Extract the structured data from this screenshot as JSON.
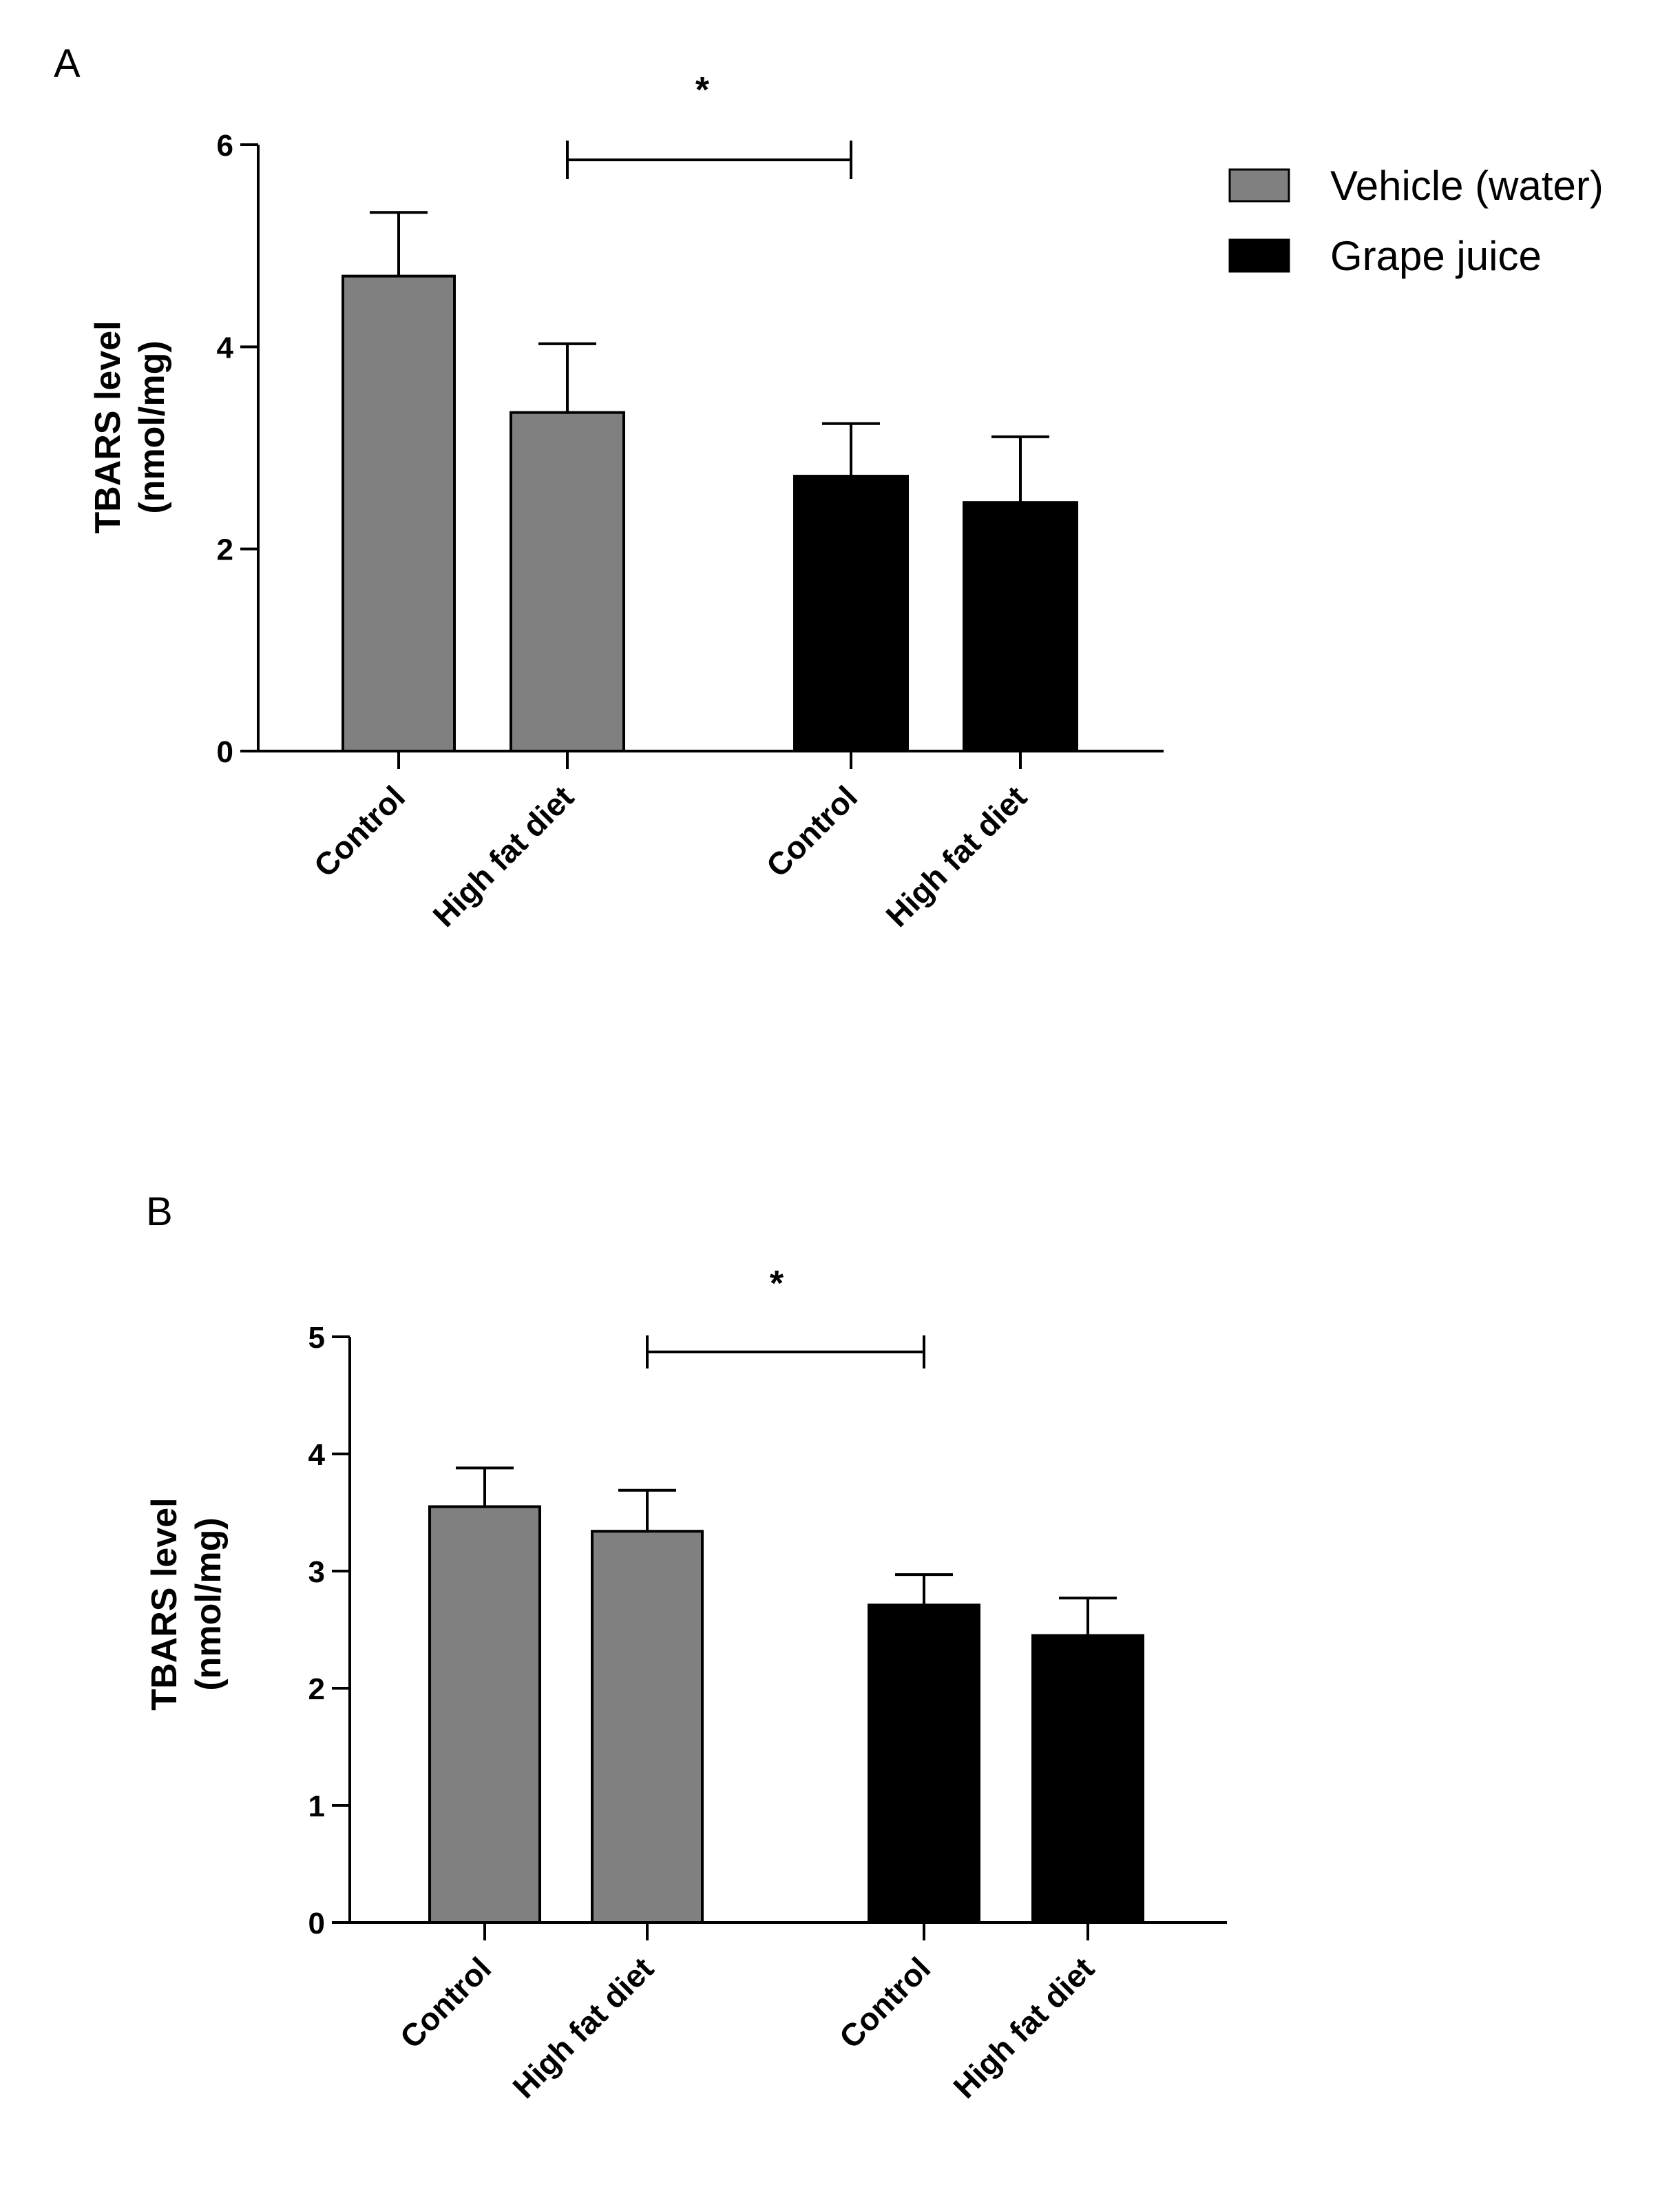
{
  "legend": [
    {
      "label": "Vehicle (water)",
      "color": "#808080"
    },
    {
      "label": "Grape juice",
      "color": "#000000"
    }
  ],
  "chart_data": [
    {
      "type": "bar",
      "panel_label": "A",
      "categories": [
        "Control",
        "High fat diet",
        "Control",
        "High fat diet"
      ],
      "groups": [
        "Vehicle (water)",
        "Vehicle (water)",
        "Grape juice",
        "Grape juice"
      ],
      "values": [
        4.7,
        3.35,
        2.72,
        2.46
      ],
      "errors": [
        0.63,
        0.68,
        0.52,
        0.65
      ],
      "ylabel_line1": "TBARS level",
      "ylabel_line2": "(nmol/mg)",
      "ylim": [
        0,
        6
      ],
      "yticks": [
        0,
        2,
        4,
        6
      ],
      "significance": {
        "from_bar": 1,
        "to_bar": 2,
        "label": "*"
      }
    },
    {
      "type": "bar",
      "panel_label": "B",
      "categories": [
        "Control",
        "High fat diet",
        "Control",
        "High fat diet"
      ],
      "groups": [
        "Vehicle (water)",
        "Vehicle (water)",
        "Grape juice",
        "Grape juice"
      ],
      "values": [
        3.55,
        3.34,
        2.71,
        2.45
      ],
      "errors": [
        0.33,
        0.35,
        0.26,
        0.32
      ],
      "ylabel_line1": "TBARS level",
      "ylabel_line2": "(nmol/mg)",
      "ylim": [
        0,
        5
      ],
      "yticks": [
        0,
        1,
        2,
        3,
        4,
        5
      ],
      "significance": {
        "from_bar": 1,
        "to_bar": 2,
        "label": "*"
      }
    }
  ]
}
